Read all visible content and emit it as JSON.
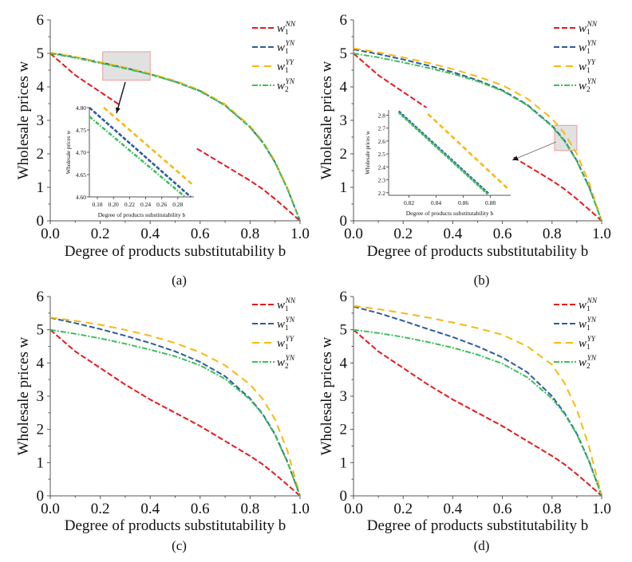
{
  "figure": {
    "panel_labels": [
      "(a)",
      "(b)",
      "(c)",
      "(d)"
    ]
  },
  "series_styles": [
    {
      "key": "w1NN",
      "base": "w",
      "sub": "1",
      "sup": "NN",
      "color": "#e8171b",
      "dash": "dash"
    },
    {
      "key": "w1YN",
      "base": "w",
      "sub": "1",
      "sup": "YN",
      "color": "#2f5b9c",
      "dash": "dash"
    },
    {
      "key": "w1YY",
      "base": "w",
      "sub": "1",
      "sup": "YY",
      "color": "#f7b90f",
      "dash": "longdash"
    },
    {
      "key": "w2YN",
      "base": "w",
      "sub": "2",
      "sup": "YN",
      "color": "#3cbf5c",
      "dash": "dashdot"
    }
  ],
  "chart_data": [
    {
      "panel": "(a)",
      "type": "line",
      "xlabel": "Degree of products substitutability b",
      "ylabel": "Wholesale prices w",
      "xlim": [
        0,
        1.0
      ],
      "ylim": [
        0,
        6
      ],
      "xticks": [
        "0.0",
        "0.2",
        "0.4",
        "0.6",
        "0.8",
        "1.0"
      ],
      "yticks": [
        "0",
        "1",
        "2",
        "3",
        "4",
        "5",
        "6"
      ],
      "legend": "top-right",
      "x": [
        0,
        0.1,
        0.2,
        0.3,
        0.4,
        0.5,
        0.6,
        0.7,
        0.8,
        0.85,
        0.9,
        0.95,
        1.0
      ],
      "series": [
        {
          "name": "w1NN",
          "values": [
            5.0,
            4.35,
            3.85,
            3.35,
            2.9,
            2.5,
            2.1,
            1.65,
            1.2,
            0.95,
            0.65,
            0.33,
            0
          ]
        },
        {
          "name": "w1YN",
          "values": [
            5.02,
            4.89,
            4.73,
            4.57,
            4.38,
            4.16,
            3.88,
            3.45,
            2.8,
            2.35,
            1.75,
            0.95,
            0
          ]
        },
        {
          "name": "w1YY",
          "values": [
            5.02,
            4.9,
            4.74,
            4.58,
            4.4,
            4.18,
            3.9,
            3.48,
            2.83,
            2.38,
            1.78,
            0.98,
            0
          ]
        },
        {
          "name": "w2YN",
          "values": [
            5.0,
            4.87,
            4.71,
            4.55,
            4.37,
            4.15,
            3.87,
            3.44,
            2.79,
            2.34,
            1.74,
            0.94,
            0
          ]
        }
      ],
      "highlight": {
        "xrange": [
          0.21,
          0.4
        ],
        "yrange": [
          4.2,
          5.05
        ]
      },
      "inset": {
        "xlabel": "Degree of products substitutability b",
        "ylabel": "Wholesale prices w",
        "xlim": [
          0.17,
          0.3
        ],
        "ylim": [
          4.6,
          4.8
        ],
        "xticks": [
          "0.18",
          "0.20",
          "0.22",
          "0.24",
          "0.26",
          "0.28"
        ],
        "yticks": [
          "4.60",
          "4.65",
          "4.70",
          "4.75",
          "4.80"
        ],
        "series": [
          {
            "name": "w1YN",
            "points": [
              [
                0.17,
                4.8
              ],
              [
                0.296,
                4.6
              ]
            ]
          },
          {
            "name": "w1YY",
            "points": [
              [
                0.188,
                4.8
              ],
              [
                0.3,
                4.625
              ]
            ]
          },
          {
            "name": "w2YN",
            "points": [
              [
                0.17,
                4.78
              ],
              [
                0.289,
                4.6
              ]
            ]
          }
        ]
      }
    },
    {
      "panel": "(b)",
      "type": "line",
      "xlabel": "Degree of products substitutability b",
      "ylabel": "Wholesale prices w",
      "xlim": [
        0,
        1.0
      ],
      "ylim": [
        0,
        6
      ],
      "xticks": [
        "0.0",
        "0.2",
        "0.4",
        "0.6",
        "0.8",
        "1.0"
      ],
      "yticks": [
        "0",
        "1",
        "2",
        "3",
        "4",
        "5",
        "6"
      ],
      "legend": "top-right",
      "x": [
        0,
        0.1,
        0.2,
        0.3,
        0.4,
        0.5,
        0.6,
        0.7,
        0.8,
        0.85,
        0.9,
        0.95,
        1.0
      ],
      "series": [
        {
          "name": "w1NN",
          "values": [
            5.0,
            4.35,
            3.85,
            3.35,
            2.9,
            2.5,
            2.1,
            1.65,
            1.2,
            0.95,
            0.65,
            0.33,
            0
          ]
        },
        {
          "name": "w1YN",
          "values": [
            5.12,
            4.98,
            4.82,
            4.64,
            4.44,
            4.2,
            3.9,
            3.47,
            2.84,
            2.4,
            1.8,
            1.0,
            0
          ]
        },
        {
          "name": "w1YY",
          "values": [
            5.15,
            5.03,
            4.88,
            4.72,
            4.53,
            4.31,
            4.05,
            3.65,
            3.05,
            2.62,
            2.0,
            1.12,
            0
          ]
        },
        {
          "name": "w2YN",
          "values": [
            5.0,
            4.88,
            4.73,
            4.57,
            4.39,
            4.17,
            3.88,
            3.45,
            2.82,
            2.38,
            1.78,
            0.98,
            0
          ]
        }
      ],
      "highlight": {
        "xrange": [
          0.81,
          0.9
        ],
        "yrange": [
          2.1,
          2.85
        ]
      },
      "inset": {
        "xlabel": "Degree of products substitutability b",
        "ylabel": "Wholesale prices w",
        "xlim": [
          0.805,
          0.895
        ],
        "ylim": [
          2.18,
          2.84
        ],
        "xticks": [
          "0.82",
          "0.84",
          "0.86",
          "0.88"
        ],
        "yticks": [
          "2.2",
          "2.3",
          "2.4",
          "2.5",
          "2.6",
          "2.7",
          "2.8"
        ],
        "series": [
          {
            "name": "w1YN",
            "points": [
              [
                0.8125,
                2.83
              ],
              [
                0.879,
                2.19
              ]
            ]
          },
          {
            "name": "w1YY",
            "points": [
              [
                0.834,
                2.81
              ],
              [
                0.894,
                2.22
              ]
            ]
          },
          {
            "name": "w2YN",
            "points": [
              [
                0.8125,
                2.82
              ],
              [
                0.878,
                2.19
              ]
            ]
          }
        ]
      }
    },
    {
      "panel": "(c)",
      "type": "line",
      "xlabel": "Degree of products substitutability b",
      "ylabel": "Wholesale prices w",
      "xlim": [
        0,
        1.0
      ],
      "ylim": [
        0,
        6
      ],
      "xticks": [
        "0.0",
        "0.2",
        "0.4",
        "0.6",
        "0.8",
        "1.0"
      ],
      "yticks": [
        "0",
        "1",
        "2",
        "3",
        "4",
        "5",
        "6"
      ],
      "legend": "top-right",
      "x": [
        0,
        0.1,
        0.2,
        0.3,
        0.4,
        0.5,
        0.6,
        0.7,
        0.8,
        0.85,
        0.9,
        0.95,
        1.0
      ],
      "series": [
        {
          "name": "w1NN",
          "values": [
            5.0,
            4.35,
            3.85,
            3.35,
            2.9,
            2.5,
            2.1,
            1.65,
            1.2,
            0.95,
            0.65,
            0.33,
            0
          ]
        },
        {
          "name": "w1YN",
          "values": [
            5.36,
            5.2,
            5.02,
            4.82,
            4.6,
            4.35,
            4.03,
            3.6,
            2.93,
            2.47,
            1.85,
            1.02,
            0
          ]
        },
        {
          "name": "w1YY",
          "values": [
            5.37,
            5.27,
            5.15,
            5.0,
            4.82,
            4.6,
            4.32,
            3.93,
            3.35,
            2.92,
            2.3,
            1.35,
            0
          ]
        },
        {
          "name": "w2YN",
          "values": [
            5.0,
            4.88,
            4.74,
            4.58,
            4.4,
            4.2,
            3.93,
            3.52,
            2.9,
            2.45,
            1.83,
            1.0,
            0
          ]
        }
      ]
    },
    {
      "panel": "(d)",
      "type": "line",
      "xlabel": "Degree of products substitutability b",
      "ylabel": "Wholesale prices w",
      "xlim": [
        0,
        1.0
      ],
      "ylim": [
        0,
        6
      ],
      "xticks": [
        "0.0",
        "0.2",
        "0.4",
        "0.6",
        "0.8",
        "1.0"
      ],
      "yticks": [
        "0",
        "1",
        "2",
        "3",
        "4",
        "5",
        "6"
      ],
      "legend": "top-right",
      "x": [
        0,
        0.1,
        0.2,
        0.3,
        0.4,
        0.5,
        0.6,
        0.7,
        0.8,
        0.85,
        0.9,
        0.95,
        1.0
      ],
      "series": [
        {
          "name": "w1NN",
          "values": [
            5.0,
            4.35,
            3.85,
            3.35,
            2.9,
            2.5,
            2.1,
            1.65,
            1.2,
            0.95,
            0.65,
            0.33,
            0
          ]
        },
        {
          "name": "w1YN",
          "values": [
            5.7,
            5.5,
            5.27,
            5.02,
            4.78,
            4.5,
            4.17,
            3.72,
            3.0,
            2.5,
            1.87,
            1.03,
            0
          ]
        },
        {
          "name": "w1YY",
          "values": [
            5.72,
            5.62,
            5.5,
            5.37,
            5.22,
            5.05,
            4.85,
            4.5,
            3.95,
            3.4,
            2.6,
            1.45,
            0
          ]
        },
        {
          "name": "w2YN",
          "values": [
            5.0,
            4.9,
            4.78,
            4.63,
            4.46,
            4.25,
            3.98,
            3.57,
            2.93,
            2.47,
            1.85,
            1.01,
            0
          ]
        }
      ]
    }
  ]
}
